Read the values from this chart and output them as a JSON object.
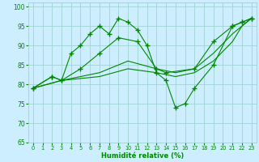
{
  "line1_x": [
    0,
    2,
    3,
    4,
    5,
    6,
    7,
    8,
    9,
    10,
    11,
    12,
    13,
    14,
    15,
    16,
    17,
    19,
    21,
    22,
    23
  ],
  "line1_y": [
    79,
    82,
    81,
    88,
    90,
    93,
    95,
    93,
    97,
    96,
    94,
    90,
    83,
    81,
    74,
    75,
    79,
    85,
    95,
    96,
    97
  ],
  "line2_x": [
    0,
    2,
    3,
    5,
    7,
    9,
    11,
    13,
    14,
    17,
    19,
    21,
    22,
    23
  ],
  "line2_y": [
    79,
    82,
    81,
    84,
    88,
    92,
    91,
    84,
    83,
    84,
    91,
    95,
    96,
    97
  ],
  "line3_x": [
    0,
    3,
    7,
    10,
    13,
    15,
    17,
    19,
    21,
    22,
    23
  ],
  "line3_y": [
    79,
    81,
    83,
    86,
    84,
    83,
    84,
    88,
    93,
    95,
    97
  ],
  "line4_x": [
    0,
    3,
    7,
    10,
    13,
    15,
    17,
    19,
    21,
    22,
    23
  ],
  "line4_y": [
    79,
    81,
    82,
    84,
    83,
    82,
    83,
    86,
    91,
    95,
    97
  ],
  "color": "#008800",
  "bg_color": "#cceeff",
  "grid_color": "#99cccc",
  "xlabel": "Humidité relative (%)",
  "ylim": [
    65,
    101
  ],
  "xlim": [
    -0.5,
    23.5
  ],
  "yticks": [
    65,
    70,
    75,
    80,
    85,
    90,
    95,
    100
  ],
  "xticks": [
    0,
    1,
    2,
    3,
    4,
    5,
    6,
    7,
    8,
    9,
    10,
    11,
    12,
    13,
    14,
    15,
    16,
    17,
    18,
    19,
    20,
    21,
    22,
    23
  ]
}
